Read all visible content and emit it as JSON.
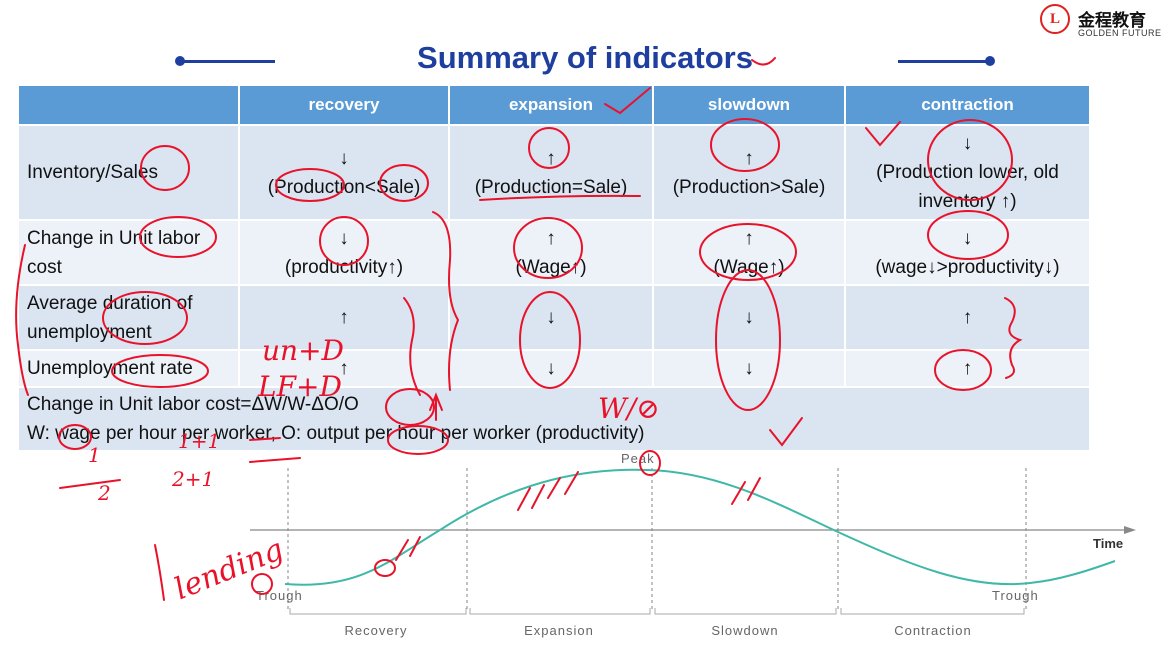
{
  "logo": {
    "chinese": "金程教育",
    "english": "GOLDEN FUTURE"
  },
  "title": "Summary of indicators",
  "table": {
    "headers": [
      "",
      "recovery",
      "expansion",
      "slowdown",
      "contraction"
    ],
    "rows": [
      {
        "label": "Inventory/Sales",
        "cells": [
          [
            "↓",
            "(Production<Sale)"
          ],
          [
            "↑",
            "(Production=Sale)"
          ],
          [
            "↑",
            "(Production>Sale)"
          ],
          [
            "↓",
            "(Production lower, old inventory ↑)"
          ]
        ]
      },
      {
        "label": "Change in Unit labor cost",
        "cells": [
          [
            "↓",
            "(productivity↑)"
          ],
          [
            "↑",
            "(Wage↑)"
          ],
          [
            "↑",
            "(Wage↑)"
          ],
          [
            "↓",
            "(wage↓>productivity↓)"
          ]
        ]
      },
      {
        "label": "Average duration of unemployment",
        "cells": [
          [
            "↑"
          ],
          [
            "↓"
          ],
          [
            "↓"
          ],
          [
            "↑"
          ]
        ]
      },
      {
        "label": "Unemployment rate",
        "cells": [
          [
            "↑"
          ],
          [
            "↓"
          ],
          [
            "↓"
          ],
          [
            "↑"
          ]
        ]
      }
    ],
    "footer": [
      "Change in Unit labor cost=ΔW/W-ΔO/O",
      "W: wage per hour per worker, O: output per hour per worker (productivity)"
    ]
  },
  "cycle": {
    "peak_label": "Peak",
    "axis_label": "Time",
    "trough_left": "Trough",
    "trough_right": "Trough",
    "phases": [
      "Recovery",
      "Expansion",
      "Slowdown",
      "Contraction"
    ]
  },
  "annotations": {
    "handwriting": [
      "un+D",
      "LF+D",
      "W/⊘",
      "lending",
      "1",
      "2",
      "1+1",
      "2+1"
    ]
  },
  "colors": {
    "title": "#1f3f9f",
    "header": "#5b9bd5",
    "row_dark": "#dbe4f1",
    "row_light": "#edf1f8",
    "ink": "#e8132a",
    "curve": "#3fb8a8"
  }
}
